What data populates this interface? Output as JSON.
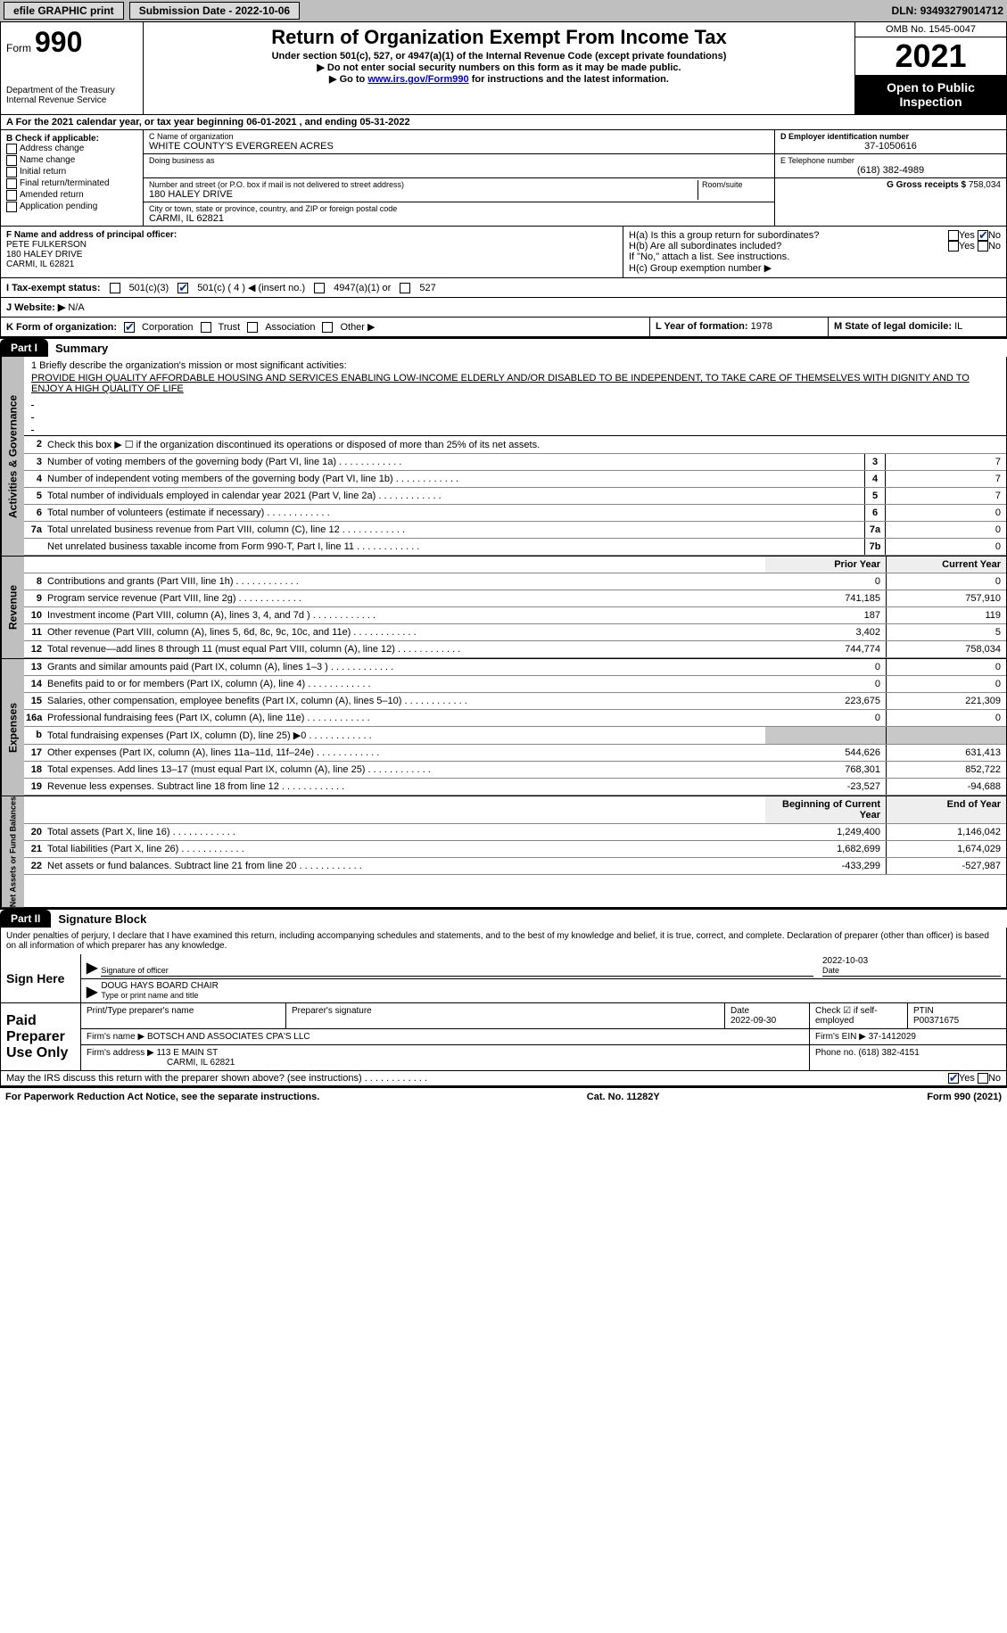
{
  "topbar": {
    "efile": "efile GRAPHIC print",
    "submission": "Submission Date - 2022-10-06",
    "dln_label": "DLN:",
    "dln": "93493279014712"
  },
  "header": {
    "form_word": "Form",
    "form_num": "990",
    "dept": "Department of the Treasury",
    "irs": "Internal Revenue Service",
    "title": "Return of Organization Exempt From Income Tax",
    "sub1": "Under section 501(c), 527, or 4947(a)(1) of the Internal Revenue Code (except private foundations)",
    "sub2": "▶ Do not enter social security numbers on this form as it may be made public.",
    "sub3_pre": "▶ Go to ",
    "sub3_link": "www.irs.gov/Form990",
    "sub3_post": " for instructions and the latest information.",
    "omb": "OMB No. 1545-0047",
    "year": "2021",
    "otpi": "Open to Public Inspection"
  },
  "period": "A For the 2021 calendar year, or tax year beginning 06-01-2021    , and ending 05-31-2022",
  "boxB": {
    "label": "B Check if applicable:",
    "items": [
      "Address change",
      "Name change",
      "Initial return",
      "Final return/terminated",
      "Amended return",
      "Application pending"
    ]
  },
  "boxC": {
    "name_label": "C Name of organization",
    "name": "WHITE COUNTY'S EVERGREEN ACRES",
    "dba_label": "Doing business as",
    "addr_label": "Number and street (or P.O. box if mail is not delivered to street address)",
    "room_label": "Room/suite",
    "addr": "180 HALEY DRIVE",
    "city_label": "City or town, state or province, country, and ZIP or foreign postal code",
    "city": "CARMI, IL  62821"
  },
  "boxDE": {
    "d_label": "D Employer identification number",
    "ein": "37-1050616",
    "e_label": "E Telephone number",
    "phone": "(618) 382-4989",
    "g_label": "G Gross receipts $",
    "gross": "758,034"
  },
  "boxF": {
    "label": "F  Name and address of principal officer:",
    "name": "PETE FULKERSON",
    "addr1": "180 HALEY DRIVE",
    "addr2": "CARMI, IL  62821"
  },
  "boxH": {
    "a": "H(a)  Is this a group return for subordinates?",
    "b": "H(b)  Are all subordinates included?",
    "note": "If \"No,\" attach a list. See instructions.",
    "c": "H(c)  Group exemption number ▶",
    "yes": "Yes",
    "no": "No"
  },
  "taxstatus": {
    "label": "I  Tax-exempt status:",
    "c3": "501(c)(3)",
    "c": "501(c) ( 4 ) ◀ (insert no.)",
    "a1": "4947(a)(1) or",
    "s527": "527"
  },
  "rowJ": {
    "label": "J  Website: ▶",
    "val": "N/A"
  },
  "rowK": {
    "label": "K Form of organization:",
    "corp": "Corporation",
    "trust": "Trust",
    "assoc": "Association",
    "other": "Other ▶",
    "l_label": "L Year of formation:",
    "l_val": "1978",
    "m_label": "M State of legal domicile:",
    "m_val": "IL"
  },
  "part1": {
    "tab": "Part I",
    "title": "Summary",
    "tabs": {
      "ag": "Activities & Governance",
      "rev": "Revenue",
      "exp": "Expenses",
      "na": "Net Assets or Fund Balances"
    },
    "mission_label": "1  Briefly describe the organization's mission or most significant activities:",
    "mission": "PROVIDE HIGH QUALITY AFFORDABLE HOUSING AND SERVICES ENABLING LOW-INCOME ELDERLY AND/OR DISABLED TO BE INDEPENDENT, TO TAKE CARE OF THEMSELVES WITH DIGNITY AND TO ENJOY A HIGH QUALITY OF LIFE",
    "line2": "Check this box ▶ ☐ if the organization discontinued its operations or disposed of more than 25% of its net assets.",
    "cols": {
      "prior": "Prior Year",
      "current": "Current Year",
      "boy": "Beginning of Current Year",
      "eoy": "End of Year"
    },
    "rows": [
      {
        "n": "3",
        "d": "Number of voting members of the governing body (Part VI, line 1a)",
        "box": "3",
        "v": "7"
      },
      {
        "n": "4",
        "d": "Number of independent voting members of the governing body (Part VI, line 1b)",
        "box": "4",
        "v": "7"
      },
      {
        "n": "5",
        "d": "Total number of individuals employed in calendar year 2021 (Part V, line 2a)",
        "box": "5",
        "v": "7"
      },
      {
        "n": "6",
        "d": "Total number of volunteers (estimate if necessary)",
        "box": "6",
        "v": "0"
      },
      {
        "n": "7a",
        "d": "Total unrelated business revenue from Part VIII, column (C), line 12",
        "box": "7a",
        "v": "0"
      },
      {
        "n": "",
        "d": "Net unrelated business taxable income from Form 990-T, Part I, line 11",
        "box": "7b",
        "v": "0"
      }
    ],
    "rev": [
      {
        "n": "8",
        "d": "Contributions and grants (Part VIII, line 1h)",
        "p": "0",
        "c": "0"
      },
      {
        "n": "9",
        "d": "Program service revenue (Part VIII, line 2g)",
        "p": "741,185",
        "c": "757,910"
      },
      {
        "n": "10",
        "d": "Investment income (Part VIII, column (A), lines 3, 4, and 7d )",
        "p": "187",
        "c": "119"
      },
      {
        "n": "11",
        "d": "Other revenue (Part VIII, column (A), lines 5, 6d, 8c, 9c, 10c, and 11e)",
        "p": "3,402",
        "c": "5"
      },
      {
        "n": "12",
        "d": "Total revenue—add lines 8 through 11 (must equal Part VIII, column (A), line 12)",
        "p": "744,774",
        "c": "758,034"
      }
    ],
    "exp": [
      {
        "n": "13",
        "d": "Grants and similar amounts paid (Part IX, column (A), lines 1–3 )",
        "p": "0",
        "c": "0"
      },
      {
        "n": "14",
        "d": "Benefits paid to or for members (Part IX, column (A), line 4)",
        "p": "0",
        "c": "0"
      },
      {
        "n": "15",
        "d": "Salaries, other compensation, employee benefits (Part IX, column (A), lines 5–10)",
        "p": "223,675",
        "c": "221,309"
      },
      {
        "n": "16a",
        "d": "Professional fundraising fees (Part IX, column (A), line 11e)",
        "p": "0",
        "c": "0"
      },
      {
        "n": "b",
        "d": "Total fundraising expenses (Part IX, column (D), line 25) ▶0",
        "p": "",
        "c": "",
        "grey": true
      },
      {
        "n": "17",
        "d": "Other expenses (Part IX, column (A), lines 11a–11d, 11f–24e)",
        "p": "544,626",
        "c": "631,413"
      },
      {
        "n": "18",
        "d": "Total expenses. Add lines 13–17 (must equal Part IX, column (A), line 25)",
        "p": "768,301",
        "c": "852,722"
      },
      {
        "n": "19",
        "d": "Revenue less expenses. Subtract line 18 from line 12",
        "p": "-23,527",
        "c": "-94,688"
      }
    ],
    "na": [
      {
        "n": "20",
        "d": "Total assets (Part X, line 16)",
        "p": "1,249,400",
        "c": "1,146,042"
      },
      {
        "n": "21",
        "d": "Total liabilities (Part X, line 26)",
        "p": "1,682,699",
        "c": "1,674,029"
      },
      {
        "n": "22",
        "d": "Net assets or fund balances. Subtract line 21 from line 20",
        "p": "-433,299",
        "c": "-527,987"
      }
    ]
  },
  "part2": {
    "tab": "Part II",
    "title": "Signature Block",
    "penalties": "Under penalties of perjury, I declare that I have examined this return, including accompanying schedules and statements, and to the best of my knowledge and belief, it is true, correct, and complete. Declaration of preparer (other than officer) is based on all information of which preparer has any knowledge.",
    "sign_here": "Sign Here",
    "sig_officer": "Signature of officer",
    "sig_date": "2022-10-03",
    "date_label": "Date",
    "officer_name": "DOUG HAYS BOARD CHAIR",
    "type_label": "Type or print name and title",
    "paid": "Paid Preparer Use Only",
    "prep_name_label": "Print/Type preparer's name",
    "prep_sig_label": "Preparer's signature",
    "prep_date_label": "Date",
    "prep_date": "2022-09-30",
    "self_emp": "Check ☑ if self-employed",
    "ptin_label": "PTIN",
    "ptin": "P00371675",
    "firm_name_label": "Firm's name    ▶",
    "firm_name": "BOTSCH AND ASSOCIATES CPA'S LLC",
    "firm_ein_label": "Firm's EIN ▶",
    "firm_ein": "37-1412029",
    "firm_addr_label": "Firm's address ▶",
    "firm_addr1": "113 E MAIN ST",
    "firm_addr2": "CARMI, IL  62821",
    "firm_phone_label": "Phone no.",
    "firm_phone": "(618) 382-4151",
    "discuss": "May the IRS discuss this return with the preparer shown above? (see instructions)",
    "yes": "Yes",
    "no": "No"
  },
  "footer": {
    "pra": "For Paperwork Reduction Act Notice, see the separate instructions.",
    "cat": "Cat. No. 11282Y",
    "form": "Form 990 (2021)"
  }
}
